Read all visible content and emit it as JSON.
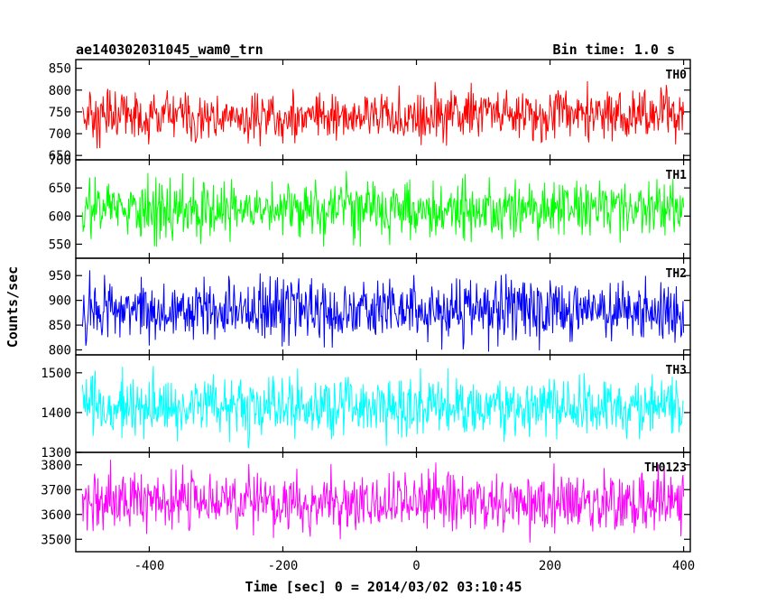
{
  "header": {
    "title": "ae140302031045_wam0_trn",
    "bin_time": "Bin time: 1.0 s"
  },
  "chart_data": {
    "type": "line",
    "xlabel": "Time [sec] 0 = 2014/03/02 03:10:45",
    "ylabel": "Counts/sec",
    "xlim": [
      -510,
      410
    ],
    "x_range": [
      -500,
      400
    ],
    "x_step": 1,
    "x_ticks": [
      -400,
      -200,
      0,
      200,
      400
    ],
    "grid": false,
    "panels": [
      {
        "name": "TH0",
        "color": "#ff0000",
        "ylim": [
          640,
          870
        ],
        "y_ticks": [
          650,
          700,
          750,
          800,
          850
        ],
        "mean": 742,
        "sigma": 27
      },
      {
        "name": "TH1",
        "color": "#00ff00",
        "ylim": [
          525,
          700
        ],
        "y_ticks": [
          550,
          600,
          650,
          700
        ],
        "mean": 612,
        "sigma": 24
      },
      {
        "name": "TH2",
        "color": "#0000ff",
        "ylim": [
          790,
          985
        ],
        "y_ticks": [
          800,
          850,
          900,
          950
        ],
        "mean": 880,
        "sigma": 30
      },
      {
        "name": "TH3",
        "color": "#00ffff",
        "ylim": [
          1300,
          1545
        ],
        "y_ticks": [
          1300,
          1400,
          1500
        ],
        "mean": 1415,
        "sigma": 38
      },
      {
        "name": "TH0123",
        "color": "#ff00ff",
        "ylim": [
          3450,
          3850
        ],
        "y_ticks": [
          3500,
          3600,
          3700,
          3800
        ],
        "mean": 3650,
        "sigma": 60
      }
    ]
  }
}
